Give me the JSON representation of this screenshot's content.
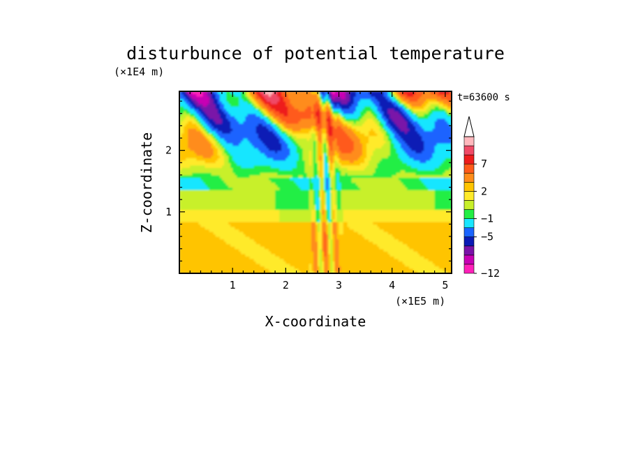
{
  "chart_data": {
    "type": "heatmap",
    "title": "disturbunce of potential temperature",
    "time_label": "t=63600 s",
    "xlabel": "X-coordinate",
    "ylabel": "Z-coordinate",
    "x_unit": "(×1E5 m)",
    "y_unit": "(×1E4 m)",
    "xlim": [
      0,
      5.12
    ],
    "ylim": [
      0,
      2.96
    ],
    "x_ticks": [
      "1",
      "2",
      "3",
      "4",
      "5"
    ],
    "y_ticks": [
      "1",
      "2"
    ],
    "colorbar": {
      "levels": [
        -12,
        -11,
        -9,
        -7,
        -5,
        -3,
        -1,
        0,
        1,
        2,
        3,
        5,
        7,
        9,
        11
      ],
      "colors": [
        "#ff1fb9",
        "#c800b4",
        "#7a12a8",
        "#0a1ab5",
        "#1a64ff",
        "#19e6ff",
        "#22ee44",
        "#c8f02a",
        "#ffea2a",
        "#ffc400",
        "#ff8c1a",
        "#ff5a1a",
        "#ee1c1c",
        "#f04a66",
        "#ffb8bd"
      ],
      "labels": [
        "-12",
        "-5",
        "-1",
        "2",
        "7"
      ],
      "extend": "max"
    },
    "grid": false
  }
}
